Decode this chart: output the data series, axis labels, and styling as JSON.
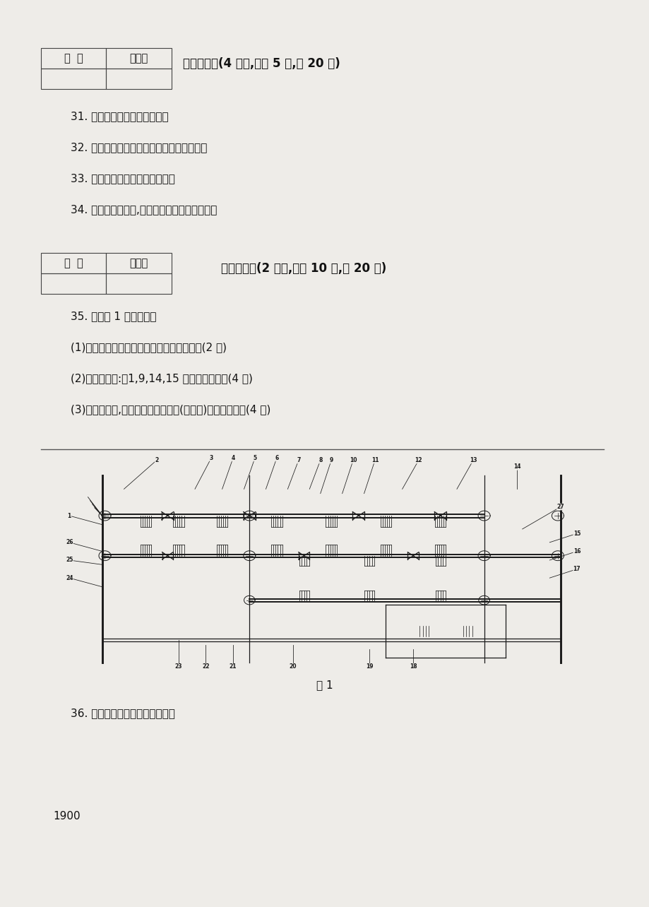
{
  "bg_color": "#eeece8",
  "page_width": 9.2,
  "page_height": 12.84,
  "section4_header": "四、简答题(4 小题,每题 5 分,共 20 分)",
  "section4_questions": [
    "31. 汽车离合器的功用是什么？",
    "32. 自动变速器的液力变矩器的功用是什么？",
    "33. 驱动桥的组成和功用是什么？",
    "34. 相比鼓式制动器,盘式制动器的优点有哪些？"
  ],
  "section5_header": "五、论述题(2 小题,每题 10 分,共 20 分)",
  "section5_q35_lines": [
    "35. 根据图 1 回答问题：",
    "(1)分析该变速器是几轴式？有几个前进档？(2 分)",
    "(2)写出代号为:【1,9,14,15 】的零件名称。(4 分)",
    "(3)用零件代号,按传动顺序写出五档(直接挡)的传动路线。(4 分)"
  ],
  "section5_q36": "36. 汽车行驶跑偏的原因是什么？",
  "figure_caption": "图 1",
  "page_number": "1900",
  "table_header_row": [
    "得  分",
    "评卷人"
  ]
}
